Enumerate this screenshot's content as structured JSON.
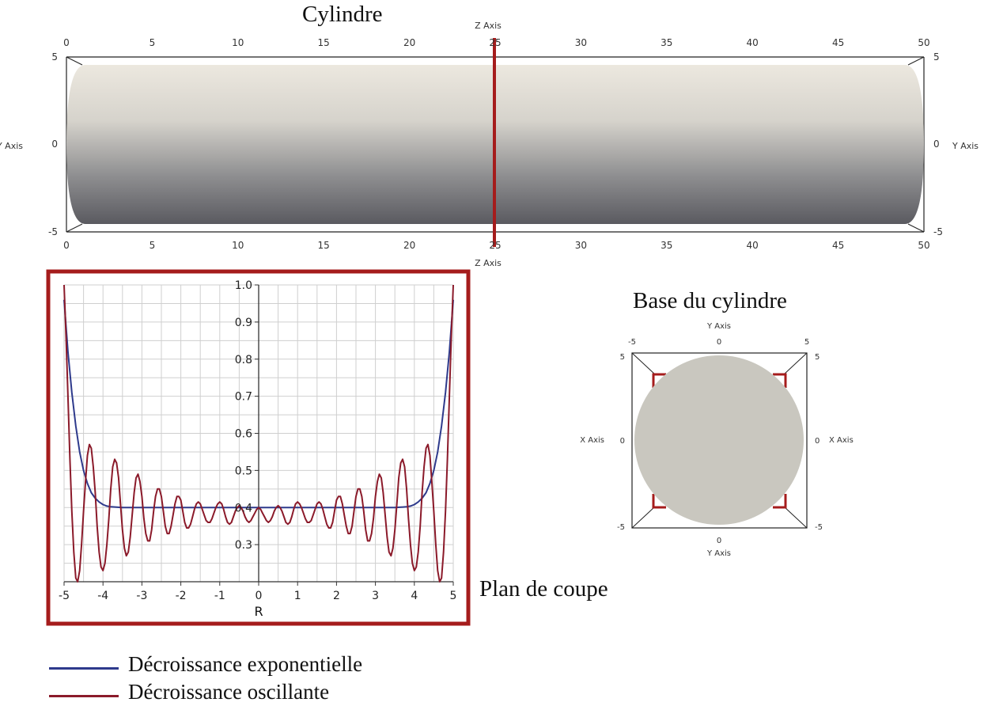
{
  "cylinder_view": {
    "title": "Cylindre",
    "z_axis_label": "Z Axis",
    "y_axis_label": "Y Axis",
    "z_ticks": [
      "0",
      "5",
      "10",
      "15",
      "20",
      "25",
      "30",
      "35",
      "40",
      "45",
      "50"
    ],
    "y_ticks": [
      "5",
      "0",
      "-5"
    ],
    "cut_plane_z": 25,
    "cut_color": "#a51c1c"
  },
  "base_view": {
    "title": "Base du cylindre",
    "x_axis_label": "X Axis",
    "y_axis_label": "Y Axis",
    "h_ticks": [
      "-5",
      "0",
      "5"
    ],
    "v_ticks": [
      "5",
      "0",
      "-5"
    ]
  },
  "cut_plot_caption": "Plan de coupe",
  "chart_data": {
    "type": "line",
    "xlabel": "R",
    "ylabel": "",
    "xlim": [
      -5,
      5
    ],
    "ylim": [
      0.2,
      1.0
    ],
    "x_ticks": [
      -5,
      -4,
      -3,
      -2,
      -1,
      0,
      1,
      2,
      3,
      4,
      5
    ],
    "y_ticks": [
      0.3,
      0.4,
      0.5,
      0.6,
      0.7,
      0.8,
      0.9,
      1.0
    ],
    "y_tick_labels": [
      "0.3",
      "0.4",
      "0.5",
      "0.6",
      "0.7",
      "0.8",
      "0.9",
      "1.0"
    ],
    "x_tick_labels": [
      "-5",
      "-4",
      "-3",
      "-2",
      "-1",
      "0",
      "1",
      "2",
      "3",
      "4",
      "5"
    ],
    "grid": true,
    "series": [
      {
        "name": "Décroissance exponentielle",
        "color": "#2e3a8c",
        "x": [
          -5,
          -4.9,
          -4.8,
          -4.7,
          -4.6,
          -4.5,
          -4.4,
          -4.3,
          -4.2,
          -4.1,
          -4.0,
          -3.9,
          -3.8,
          -3.5,
          -3.0,
          -2.0,
          -1.0,
          0,
          1.0,
          2.0,
          3.0,
          3.5,
          3.8,
          3.9,
          4.0,
          4.1,
          4.2,
          4.3,
          4.4,
          4.5,
          4.6,
          4.7,
          4.8,
          4.9,
          5
        ],
        "values": [
          0.96,
          0.82,
          0.71,
          0.62,
          0.55,
          0.5,
          0.465,
          0.44,
          0.425,
          0.415,
          0.408,
          0.404,
          0.402,
          0.4,
          0.4,
          0.4,
          0.4,
          0.4,
          0.4,
          0.4,
          0.4,
          0.4,
          0.402,
          0.404,
          0.408,
          0.415,
          0.425,
          0.44,
          0.465,
          0.5,
          0.55,
          0.62,
          0.71,
          0.82,
          0.96
        ]
      },
      {
        "name": "Décroissance oscillante",
        "color": "#8b1a2a",
        "x": [
          -5,
          -4.95,
          -4.9,
          -4.85,
          -4.8,
          -4.75,
          -4.7,
          -4.65,
          -4.6,
          -4.55,
          -4.5,
          -4.45,
          -4.4,
          -4.35,
          -4.3,
          -4.25,
          -4.2,
          -4.15,
          -4.1,
          -4.05,
          -4.0,
          -3.95,
          -3.9,
          -3.85,
          -3.8,
          -3.75,
          -3.7,
          -3.65,
          -3.6,
          -3.55,
          -3.5,
          -3.45,
          -3.4,
          -3.35,
          -3.3,
          -3.25,
          -3.2,
          -3.15,
          -3.1,
          -3.05,
          -3.0,
          -2.95,
          -2.9,
          -2.85,
          -2.8,
          -2.75,
          -2.7,
          -2.65,
          -2.6,
          -2.55,
          -2.5,
          -2.45,
          -2.4,
          -2.35,
          -2.3,
          -2.25,
          -2.2,
          -2.15,
          -2.1,
          -2.05,
          -2.0,
          -1.95,
          -1.9,
          -1.85,
          -1.8,
          -1.75,
          -1.7,
          -1.65,
          -1.6,
          -1.55,
          -1.5,
          -1.45,
          -1.4,
          -1.35,
          -1.3,
          -1.25,
          -1.2,
          -1.15,
          -1.1,
          -1.05,
          -1.0,
          -0.95,
          -0.9,
          -0.85,
          -0.8,
          -0.75,
          -0.7,
          -0.65,
          -0.6,
          -0.55,
          -0.5,
          -0.45,
          -0.4,
          -0.35,
          -0.3,
          -0.25,
          -0.2,
          -0.15,
          -0.1,
          -0.05,
          0,
          0.05,
          0.1,
          0.15,
          0.2,
          0.25,
          0.3,
          0.35,
          0.4,
          0.45,
          0.5,
          0.55,
          0.6,
          0.65,
          0.7,
          0.75,
          0.8,
          0.85,
          0.9,
          0.95,
          1.0,
          1.05,
          1.1,
          1.15,
          1.2,
          1.25,
          1.3,
          1.35,
          1.4,
          1.45,
          1.5,
          1.55,
          1.6,
          1.65,
          1.7,
          1.75,
          1.8,
          1.85,
          1.9,
          1.95,
          2.0,
          2.05,
          2.1,
          2.15,
          2.2,
          2.25,
          2.3,
          2.35,
          2.4,
          2.45,
          2.5,
          2.55,
          2.6,
          2.65,
          2.7,
          2.75,
          2.8,
          2.85,
          2.9,
          2.95,
          3.0,
          3.05,
          3.1,
          3.15,
          3.2,
          3.25,
          3.3,
          3.35,
          3.4,
          3.45,
          3.5,
          3.55,
          3.6,
          3.65,
          3.7,
          3.75,
          3.8,
          3.85,
          3.9,
          3.95,
          4.0,
          4.05,
          4.1,
          4.15,
          4.2,
          4.25,
          4.3,
          4.35,
          4.4,
          4.45,
          4.5,
          4.55,
          4.6,
          4.65,
          4.7,
          4.75,
          4.8,
          4.85,
          4.9,
          4.95,
          5
        ],
        "values": [
          1.0,
          0.86,
          0.7,
          0.53,
          0.39,
          0.28,
          0.21,
          0.2,
          0.23,
          0.3,
          0.39,
          0.47,
          0.54,
          0.57,
          0.56,
          0.51,
          0.44,
          0.35,
          0.28,
          0.24,
          0.23,
          0.25,
          0.3,
          0.37,
          0.45,
          0.51,
          0.53,
          0.52,
          0.48,
          0.41,
          0.34,
          0.29,
          0.27,
          0.28,
          0.32,
          0.38,
          0.44,
          0.48,
          0.49,
          0.47,
          0.43,
          0.37,
          0.33,
          0.31,
          0.31,
          0.34,
          0.39,
          0.43,
          0.45,
          0.45,
          0.43,
          0.39,
          0.35,
          0.33,
          0.33,
          0.35,
          0.38,
          0.41,
          0.43,
          0.43,
          0.42,
          0.39,
          0.36,
          0.345,
          0.345,
          0.355,
          0.375,
          0.395,
          0.41,
          0.415,
          0.41,
          0.395,
          0.38,
          0.365,
          0.36,
          0.36,
          0.37,
          0.385,
          0.4,
          0.41,
          0.415,
          0.41,
          0.395,
          0.375,
          0.36,
          0.355,
          0.36,
          0.375,
          0.39,
          0.4,
          0.405,
          0.4,
          0.39,
          0.375,
          0.365,
          0.36,
          0.365,
          0.375,
          0.385,
          0.395,
          0.4,
          0.395,
          0.385,
          0.375,
          0.365,
          0.36,
          0.365,
          0.375,
          0.39,
          0.4,
          0.405,
          0.4,
          0.39,
          0.375,
          0.36,
          0.355,
          0.36,
          0.375,
          0.395,
          0.41,
          0.415,
          0.41,
          0.4,
          0.385,
          0.37,
          0.36,
          0.36,
          0.365,
          0.38,
          0.395,
          0.41,
          0.415,
          0.41,
          0.395,
          0.375,
          0.355,
          0.345,
          0.345,
          0.36,
          0.39,
          0.42,
          0.43,
          0.43,
          0.41,
          0.38,
          0.35,
          0.33,
          0.33,
          0.35,
          0.39,
          0.43,
          0.45,
          0.45,
          0.43,
          0.39,
          0.34,
          0.31,
          0.31,
          0.33,
          0.37,
          0.43,
          0.47,
          0.49,
          0.48,
          0.44,
          0.38,
          0.32,
          0.28,
          0.27,
          0.29,
          0.34,
          0.41,
          0.48,
          0.52,
          0.53,
          0.51,
          0.45,
          0.37,
          0.3,
          0.25,
          0.23,
          0.24,
          0.28,
          0.35,
          0.44,
          0.51,
          0.56,
          0.57,
          0.54,
          0.47,
          0.39,
          0.3,
          0.23,
          0.2,
          0.21,
          0.28,
          0.39,
          0.53,
          0.7,
          0.86,
          1.0
        ]
      }
    ]
  },
  "legend": [
    {
      "label": "Décroissance exponentielle",
      "color": "#2e3a8c"
    },
    {
      "label": "Décroissance oscillante",
      "color": "#8b1a2a"
    }
  ]
}
